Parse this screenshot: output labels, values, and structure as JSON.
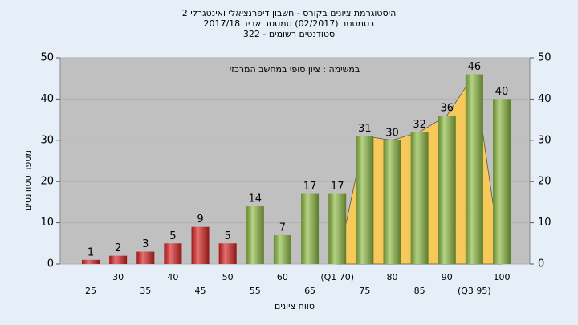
{
  "chart_data": {
    "type": "bar",
    "title": "היסטוגרמת ציונים בקורס - חשבון דיפרנציאלי ואינטגרלי 2",
    "subtitle": "בסמסטר  (02/2017)  סמסטר אביב 2017/18",
    "subtitle2": "סטודנטים רשומים - 322",
    "annotation": "במשימה : ציון סופי במחשב המרכזי",
    "y_label": "מספר סטודנטים",
    "x_label": "טווח ציונים",
    "categories": [
      "25",
      "30",
      "35",
      "40",
      "45",
      "50",
      "55",
      "60",
      "65",
      "(Q1 70)",
      "75",
      "80",
      "85",
      "90",
      "(Q3 95)",
      "100"
    ],
    "values": [
      1,
      2,
      3,
      5,
      9,
      5,
      14,
      7,
      17,
      17,
      31,
      30,
      32,
      36,
      46,
      40
    ],
    "colors": [
      "#d92424",
      "#d92424",
      "#d92424",
      "#d92424",
      "#d92424",
      "#d92424",
      "#8fbc45",
      "#8fbc45",
      "#8fbc45",
      "#8fbc45",
      "#8fbc45",
      "#8fbc45",
      "#8fbc45",
      "#8fbc45",
      "#8fbc45",
      "#8fbc45"
    ],
    "ylim": [
      0,
      50
    ],
    "yticks": [
      0,
      10,
      20,
      30,
      40,
      50
    ],
    "y2lim": [
      0,
      50
    ],
    "y2ticks": [
      0,
      10,
      20,
      30,
      40,
      50
    ],
    "area_color": "#f7c95a",
    "grid": true
  }
}
